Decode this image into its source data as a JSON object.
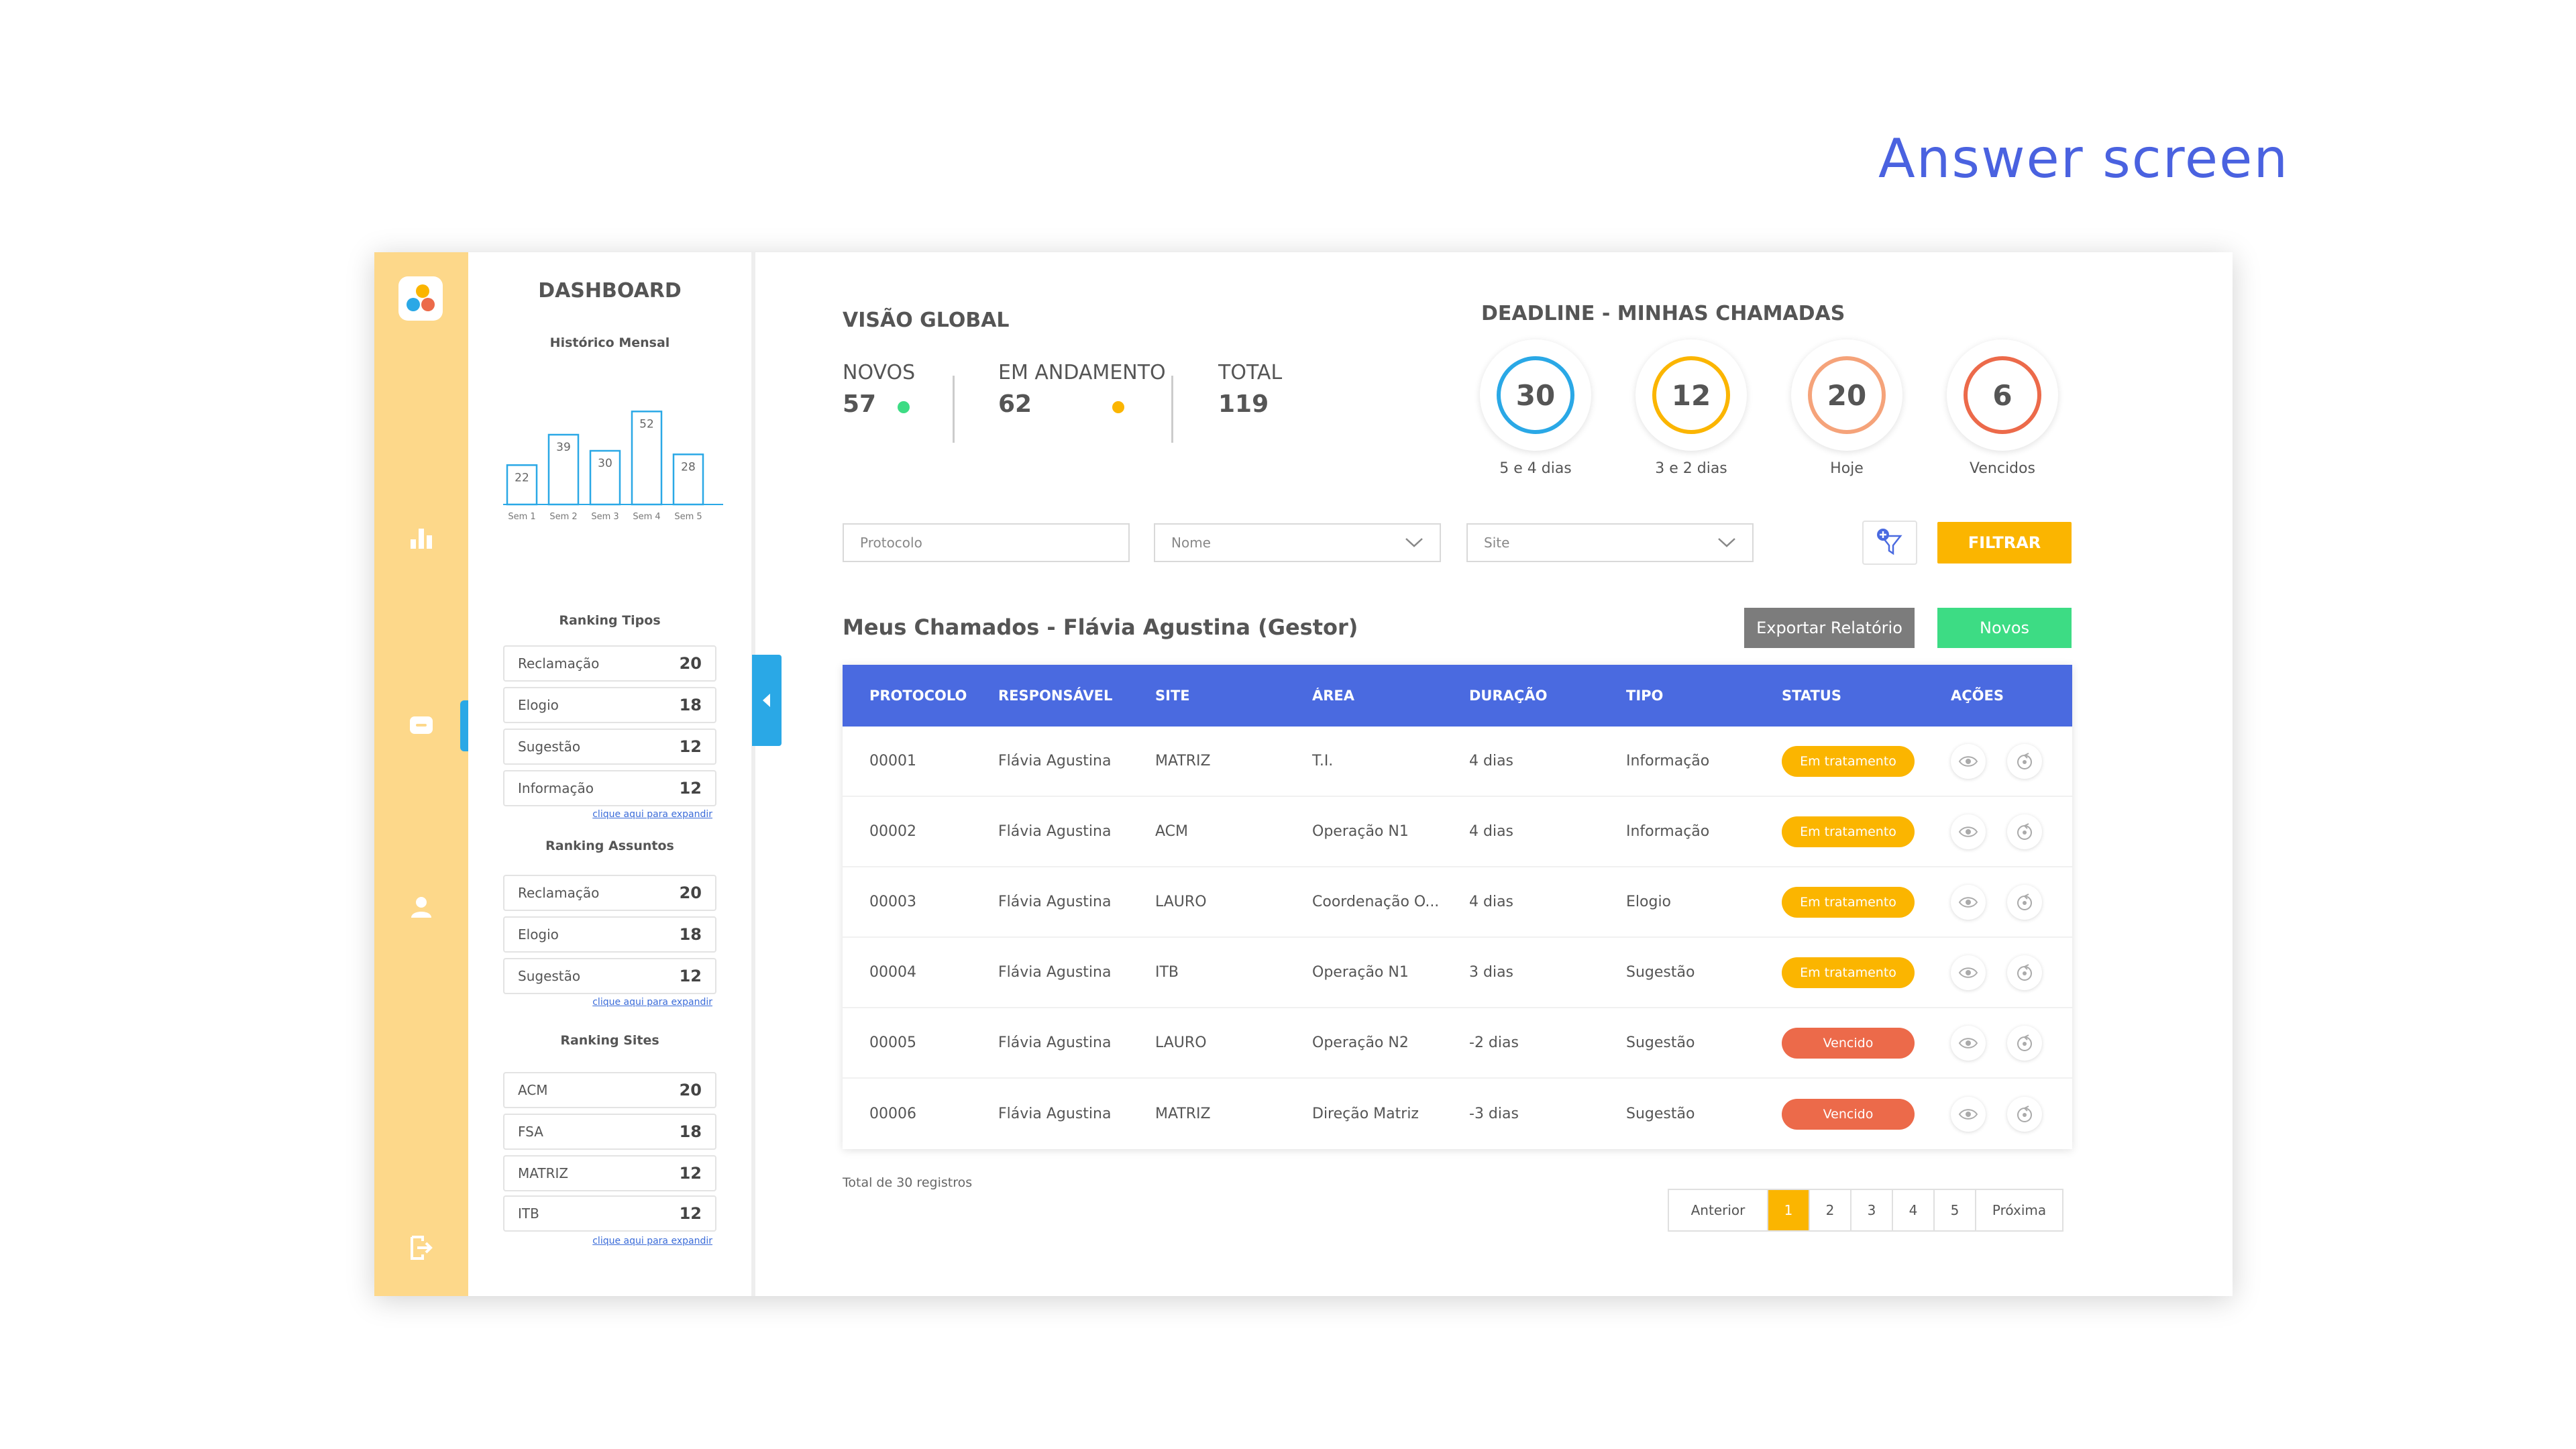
{
  "page": {
    "heading": "Answer screen"
  },
  "dashboard": {
    "title": "DASHBOARD",
    "chart_title": "Histórico Mensal",
    "ranking_tipos": {
      "title": "Ranking Tipos",
      "items": [
        {
          "label": "Reclamação",
          "value": "20"
        },
        {
          "label": "Elogio",
          "value": "18"
        },
        {
          "label": "Sugestão",
          "value": "12"
        },
        {
          "label": "Informação",
          "value": "12"
        }
      ],
      "expand": "clique aqui para expandir"
    },
    "ranking_assuntos": {
      "title": "Ranking Assuntos",
      "items": [
        {
          "label": "Reclamação",
          "value": "20"
        },
        {
          "label": "Elogio",
          "value": "18"
        },
        {
          "label": "Sugestão",
          "value": "12"
        }
      ],
      "expand": "clique aqui para expandir"
    },
    "ranking_sites": {
      "title": "Ranking Sites",
      "items": [
        {
          "label": "ACM",
          "value": "20"
        },
        {
          "label": "FSA",
          "value": "18"
        },
        {
          "label": "MATRIZ",
          "value": "12"
        },
        {
          "label": "ITB",
          "value": "12"
        }
      ],
      "expand": "clique aqui para expandir"
    }
  },
  "chart_data": {
    "type": "bar",
    "title": "Histórico Mensal",
    "categories": [
      "Sem 1",
      "Sem 2",
      "Sem 3",
      "Sem 4",
      "Sem 5"
    ],
    "values": [
      22,
      39,
      30,
      52,
      28
    ],
    "ylim": [
      0,
      60
    ],
    "color": "#2aa8e6"
  },
  "overview": {
    "title": "VISÃO GLOBAL",
    "stats": [
      {
        "label": "NOVOS",
        "value": "57",
        "dot": "#3ddc84"
      },
      {
        "label": "EM ANDAMENTO",
        "value": "62",
        "dot": "#fbb500"
      },
      {
        "label": "TOTAL",
        "value": "119"
      }
    ]
  },
  "deadline": {
    "title": "DEADLINE - MINHAS CHAMADAS",
    "circles": [
      {
        "value": "30",
        "caption": "5 e 4 dias",
        "color": "#2aa8e6"
      },
      {
        "value": "12",
        "caption": "3 e 2 dias",
        "color": "#fbb500"
      },
      {
        "value": "20",
        "caption": "Hoje",
        "color": "#f5a37a"
      },
      {
        "value": "6",
        "caption": "Vencidos",
        "color": "#ec6a4a"
      }
    ]
  },
  "filters": {
    "protocolo_placeholder": "Protocolo",
    "nome_placeholder": "Nome",
    "site_placeholder": "Site",
    "filtrar_label": "FILTRAR"
  },
  "list": {
    "title": "Meus Chamados - Flávia Agustina (Gestor)",
    "export_label": "Exportar Relatório",
    "novos_label": "Novos",
    "columns": [
      "PROTOCOLO",
      "RESPONSÁVEL",
      "SITE",
      "ÁREA",
      "DURAÇÃO",
      "TIPO",
      "STATUS",
      "AÇÕES"
    ],
    "rows": [
      {
        "protocolo": "00001",
        "responsavel": "Flávia Agustina",
        "site": "MATRIZ",
        "area": "T.I.",
        "duracao": "4 dias",
        "tipo": "Informação",
        "status": "Em tratamento",
        "status_color": "#fbb500"
      },
      {
        "protocolo": "00002",
        "responsavel": "Flávia Agustina",
        "site": "ACM",
        "area": "Operação N1",
        "duracao": "4 dias",
        "tipo": "Informação",
        "status": "Em tratamento",
        "status_color": "#fbb500"
      },
      {
        "protocolo": "00003",
        "responsavel": "Flávia Agustina",
        "site": "LAURO",
        "area": "Coordenação O...",
        "duracao": "4 dias",
        "tipo": "Elogio",
        "status": "Em tratamento",
        "status_color": "#fbb500"
      },
      {
        "protocolo": "00004",
        "responsavel": "Flávia Agustina",
        "site": "ITB",
        "area": "Operação N1",
        "duracao": "3 dias",
        "tipo": "Sugestão",
        "status": "Em tratamento",
        "status_color": "#fbb500"
      },
      {
        "protocolo": "00005",
        "responsavel": "Flávia Agustina",
        "site": "LAURO",
        "area": "Operação N2",
        "duracao": "-2 dias",
        "tipo": "Sugestão",
        "status": "Vencido",
        "status_color": "#ec6a4a"
      },
      {
        "protocolo": "00006",
        "responsavel": "Flávia Agustina",
        "site": "MATRIZ",
        "area": "Direção Matriz",
        "duracao": "-3 dias",
        "tipo": "Sugestão",
        "status": "Vencido",
        "status_color": "#ec6a4a"
      }
    ],
    "total_text": "Total de 30 registros"
  },
  "pagination": {
    "prev": "Anterior",
    "pages": [
      "1",
      "2",
      "3",
      "4",
      "5"
    ],
    "active": "1",
    "next": "Próxima"
  },
  "colors": {
    "accent": "#4a6ae0",
    "rail": "#fdd88a",
    "highlight": "#2aa8e6",
    "warning": "#fbb500",
    "success": "#3ddc84",
    "danger": "#ec6a4a"
  }
}
